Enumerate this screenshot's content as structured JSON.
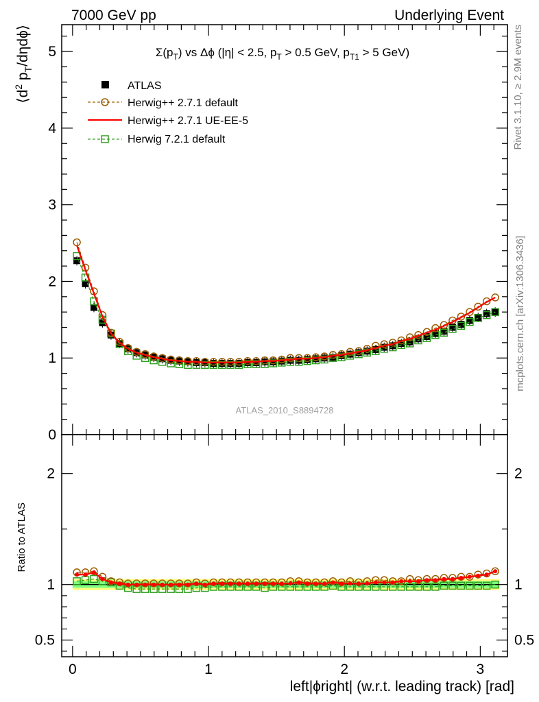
{
  "header": {
    "left": "7000 GeV pp",
    "right": "Underlying Event"
  },
  "side_notes": {
    "rivet": "Rivet 3.1.10, ≥ 2.9M events",
    "mcplots": "mcplots.cern.ch [arXiv:1306.3436]"
  },
  "chart_data": [
    {
      "type": "line",
      "panel": "main",
      "title_parts": {
        "sigma": "Σ(p",
        "t_sub": "T",
        "mid": ") vs Δϕ (|η| < 2.5, p",
        "t_sub2": "T",
        "mid2": " > 0.5 GeV, p",
        "t1_sub": "T1",
        "end": " > 5 GeV)"
      },
      "ylabel_parts": {
        "open": "⟨d",
        "sup2": "2",
        "mid": " p",
        "sub_t": "T",
        "end": "/dηdϕ⟩"
      },
      "watermark": "ATLAS_2010_S8894728",
      "xlim": [
        -0.08,
        3.2
      ],
      "ylim": [
        0,
        5.35
      ],
      "yticks": [
        {
          "value": 0,
          "label": "0"
        },
        {
          "value": 1,
          "label": "1"
        },
        {
          "value": 2,
          "label": "2"
        },
        {
          "value": 3,
          "label": "3"
        },
        {
          "value": 4,
          "label": "4"
        },
        {
          "value": 5,
          "label": "5"
        }
      ],
      "legend_position": "top-left",
      "x": [
        0.0314,
        0.0942,
        0.157,
        0.22,
        0.283,
        0.346,
        0.408,
        0.471,
        0.534,
        0.597,
        0.66,
        0.723,
        0.785,
        0.848,
        0.911,
        0.974,
        1.037,
        1.1,
        1.162,
        1.225,
        1.288,
        1.351,
        1.414,
        1.476,
        1.539,
        1.602,
        1.665,
        1.728,
        1.79,
        1.853,
        1.916,
        1.979,
        2.042,
        2.105,
        2.167,
        2.23,
        2.293,
        2.356,
        2.419,
        2.482,
        2.544,
        2.607,
        2.67,
        2.733,
        2.796,
        2.859,
        2.922,
        2.984,
        3.047,
        3.11
      ],
      "series": [
        {
          "name": "ATLAS",
          "style": "data",
          "color": "#000000",
          "y": [
            2.27,
            1.97,
            1.66,
            1.46,
            1.3,
            1.19,
            1.12,
            1.07,
            1.04,
            1.01,
            0.99,
            0.97,
            0.96,
            0.95,
            0.94,
            0.94,
            0.93,
            0.93,
            0.93,
            0.93,
            0.94,
            0.94,
            0.95,
            0.95,
            0.96,
            0.97,
            0.97,
            0.98,
            0.99,
            1.0,
            1.01,
            1.03,
            1.05,
            1.07,
            1.09,
            1.11,
            1.14,
            1.16,
            1.19,
            1.21,
            1.25,
            1.28,
            1.32,
            1.35,
            1.4,
            1.44,
            1.49,
            1.53,
            1.58,
            1.6
          ]
        },
        {
          "name": "Herwig++ 2.7.1 default",
          "style": "dashed-circle",
          "color": "#9a5a00",
          "y": [
            2.51,
            2.18,
            1.87,
            1.56,
            1.33,
            1.21,
            1.13,
            1.08,
            1.05,
            1.02,
            1.0,
            0.98,
            0.97,
            0.96,
            0.96,
            0.95,
            0.95,
            0.95,
            0.95,
            0.95,
            0.96,
            0.96,
            0.97,
            0.97,
            0.98,
            1.0,
            1.0,
            1.0,
            1.01,
            1.02,
            1.04,
            1.05,
            1.08,
            1.09,
            1.12,
            1.16,
            1.18,
            1.2,
            1.23,
            1.27,
            1.3,
            1.34,
            1.39,
            1.43,
            1.49,
            1.54,
            1.6,
            1.67,
            1.74,
            1.79
          ]
        },
        {
          "name": "Herwig++ 2.7.1 UE-EE-5",
          "style": "solid-red",
          "color": "#ff0000",
          "y": [
            2.47,
            2.15,
            1.84,
            1.54,
            1.32,
            1.2,
            1.12,
            1.07,
            1.04,
            1.01,
            0.99,
            0.97,
            0.96,
            0.95,
            0.95,
            0.94,
            0.94,
            0.94,
            0.94,
            0.94,
            0.95,
            0.95,
            0.96,
            0.96,
            0.97,
            0.98,
            0.99,
            0.99,
            1.0,
            1.01,
            1.03,
            1.04,
            1.06,
            1.08,
            1.1,
            1.13,
            1.16,
            1.18,
            1.22,
            1.25,
            1.29,
            1.33,
            1.37,
            1.42,
            1.47,
            1.53,
            1.59,
            1.66,
            1.73,
            1.79
          ]
        },
        {
          "name": "Herwig 7.2.1 default",
          "style": "dashed-square",
          "color": "#30a020",
          "y": [
            2.33,
            2.05,
            1.74,
            1.5,
            1.32,
            1.18,
            1.09,
            1.03,
            1.0,
            0.97,
            0.95,
            0.93,
            0.92,
            0.91,
            0.91,
            0.91,
            0.91,
            0.91,
            0.91,
            0.91,
            0.92,
            0.92,
            0.92,
            0.93,
            0.94,
            0.95,
            0.95,
            0.96,
            0.97,
            0.98,
            1.0,
            1.01,
            1.03,
            1.05,
            1.07,
            1.09,
            1.12,
            1.14,
            1.17,
            1.19,
            1.23,
            1.26,
            1.3,
            1.33,
            1.38,
            1.42,
            1.47,
            1.52,
            1.56,
            1.6
          ]
        }
      ]
    },
    {
      "type": "line",
      "panel": "ratio",
      "ylabel": "Ratio to ATLAS",
      "xlabel": "left|ϕright| (w.r.t. leading track) [rad]",
      "xlim": [
        -0.08,
        3.2
      ],
      "ylim": [
        0.35,
        2.35
      ],
      "yticks": [
        {
          "value": 0.5,
          "label": "0.5"
        },
        {
          "value": 1,
          "label": "1"
        },
        {
          "value": 2,
          "label": "2"
        }
      ],
      "xticks": [
        {
          "value": 0,
          "label": "0"
        },
        {
          "value": 1,
          "label": "1"
        },
        {
          "value": 2,
          "label": "2"
        },
        {
          "value": 3,
          "label": "3"
        }
      ],
      "band_outer": [
        0.95,
        1.05
      ],
      "band_inner": [
        0.97,
        1.03
      ],
      "band_colors": {
        "outer": "#ffff80",
        "inner": "#80ff80"
      },
      "series": [
        {
          "name": "Herwig++ 2.7.1 default",
          "y": [
            1.11,
            1.11,
            1.12,
            1.07,
            1.03,
            1.02,
            1.01,
            1.01,
            1.01,
            1.01,
            1.01,
            1.01,
            1.01,
            1.01,
            1.02,
            1.01,
            1.02,
            1.02,
            1.02,
            1.02,
            1.02,
            1.02,
            1.02,
            1.02,
            1.02,
            1.03,
            1.03,
            1.02,
            1.02,
            1.02,
            1.03,
            1.02,
            1.03,
            1.02,
            1.03,
            1.04,
            1.04,
            1.03,
            1.03,
            1.05,
            1.04,
            1.05,
            1.05,
            1.06,
            1.06,
            1.07,
            1.07,
            1.09,
            1.1,
            1.12
          ]
        },
        {
          "name": "Herwig++ 2.7.1 UE-EE-5",
          "y": [
            1.09,
            1.09,
            1.11,
            1.05,
            1.02,
            1.01,
            1.0,
            1.0,
            1.0,
            1.0,
            1.0,
            1.0,
            1.0,
            1.0,
            1.01,
            1.0,
            1.01,
            1.01,
            1.01,
            1.01,
            1.01,
            1.01,
            1.01,
            1.01,
            1.01,
            1.01,
            1.02,
            1.01,
            1.01,
            1.01,
            1.02,
            1.01,
            1.01,
            1.01,
            1.01,
            1.02,
            1.02,
            1.02,
            1.03,
            1.03,
            1.03,
            1.04,
            1.04,
            1.05,
            1.05,
            1.06,
            1.07,
            1.08,
            1.09,
            1.12
          ]
        },
        {
          "name": "Herwig 7.2.1 default",
          "y": [
            1.03,
            1.04,
            1.05,
            1.03,
            1.02,
            0.99,
            0.97,
            0.96,
            0.96,
            0.96,
            0.96,
            0.96,
            0.96,
            0.96,
            0.97,
            0.97,
            0.98,
            0.98,
            0.98,
            0.98,
            0.98,
            0.98,
            0.97,
            0.98,
            0.98,
            0.98,
            0.98,
            0.98,
            0.98,
            0.98,
            0.99,
            0.98,
            0.98,
            0.98,
            0.98,
            0.98,
            0.98,
            0.98,
            0.98,
            0.98,
            0.98,
            0.98,
            0.98,
            0.99,
            0.99,
            0.99,
            0.99,
            0.99,
            0.99,
            1.0
          ]
        }
      ]
    }
  ]
}
